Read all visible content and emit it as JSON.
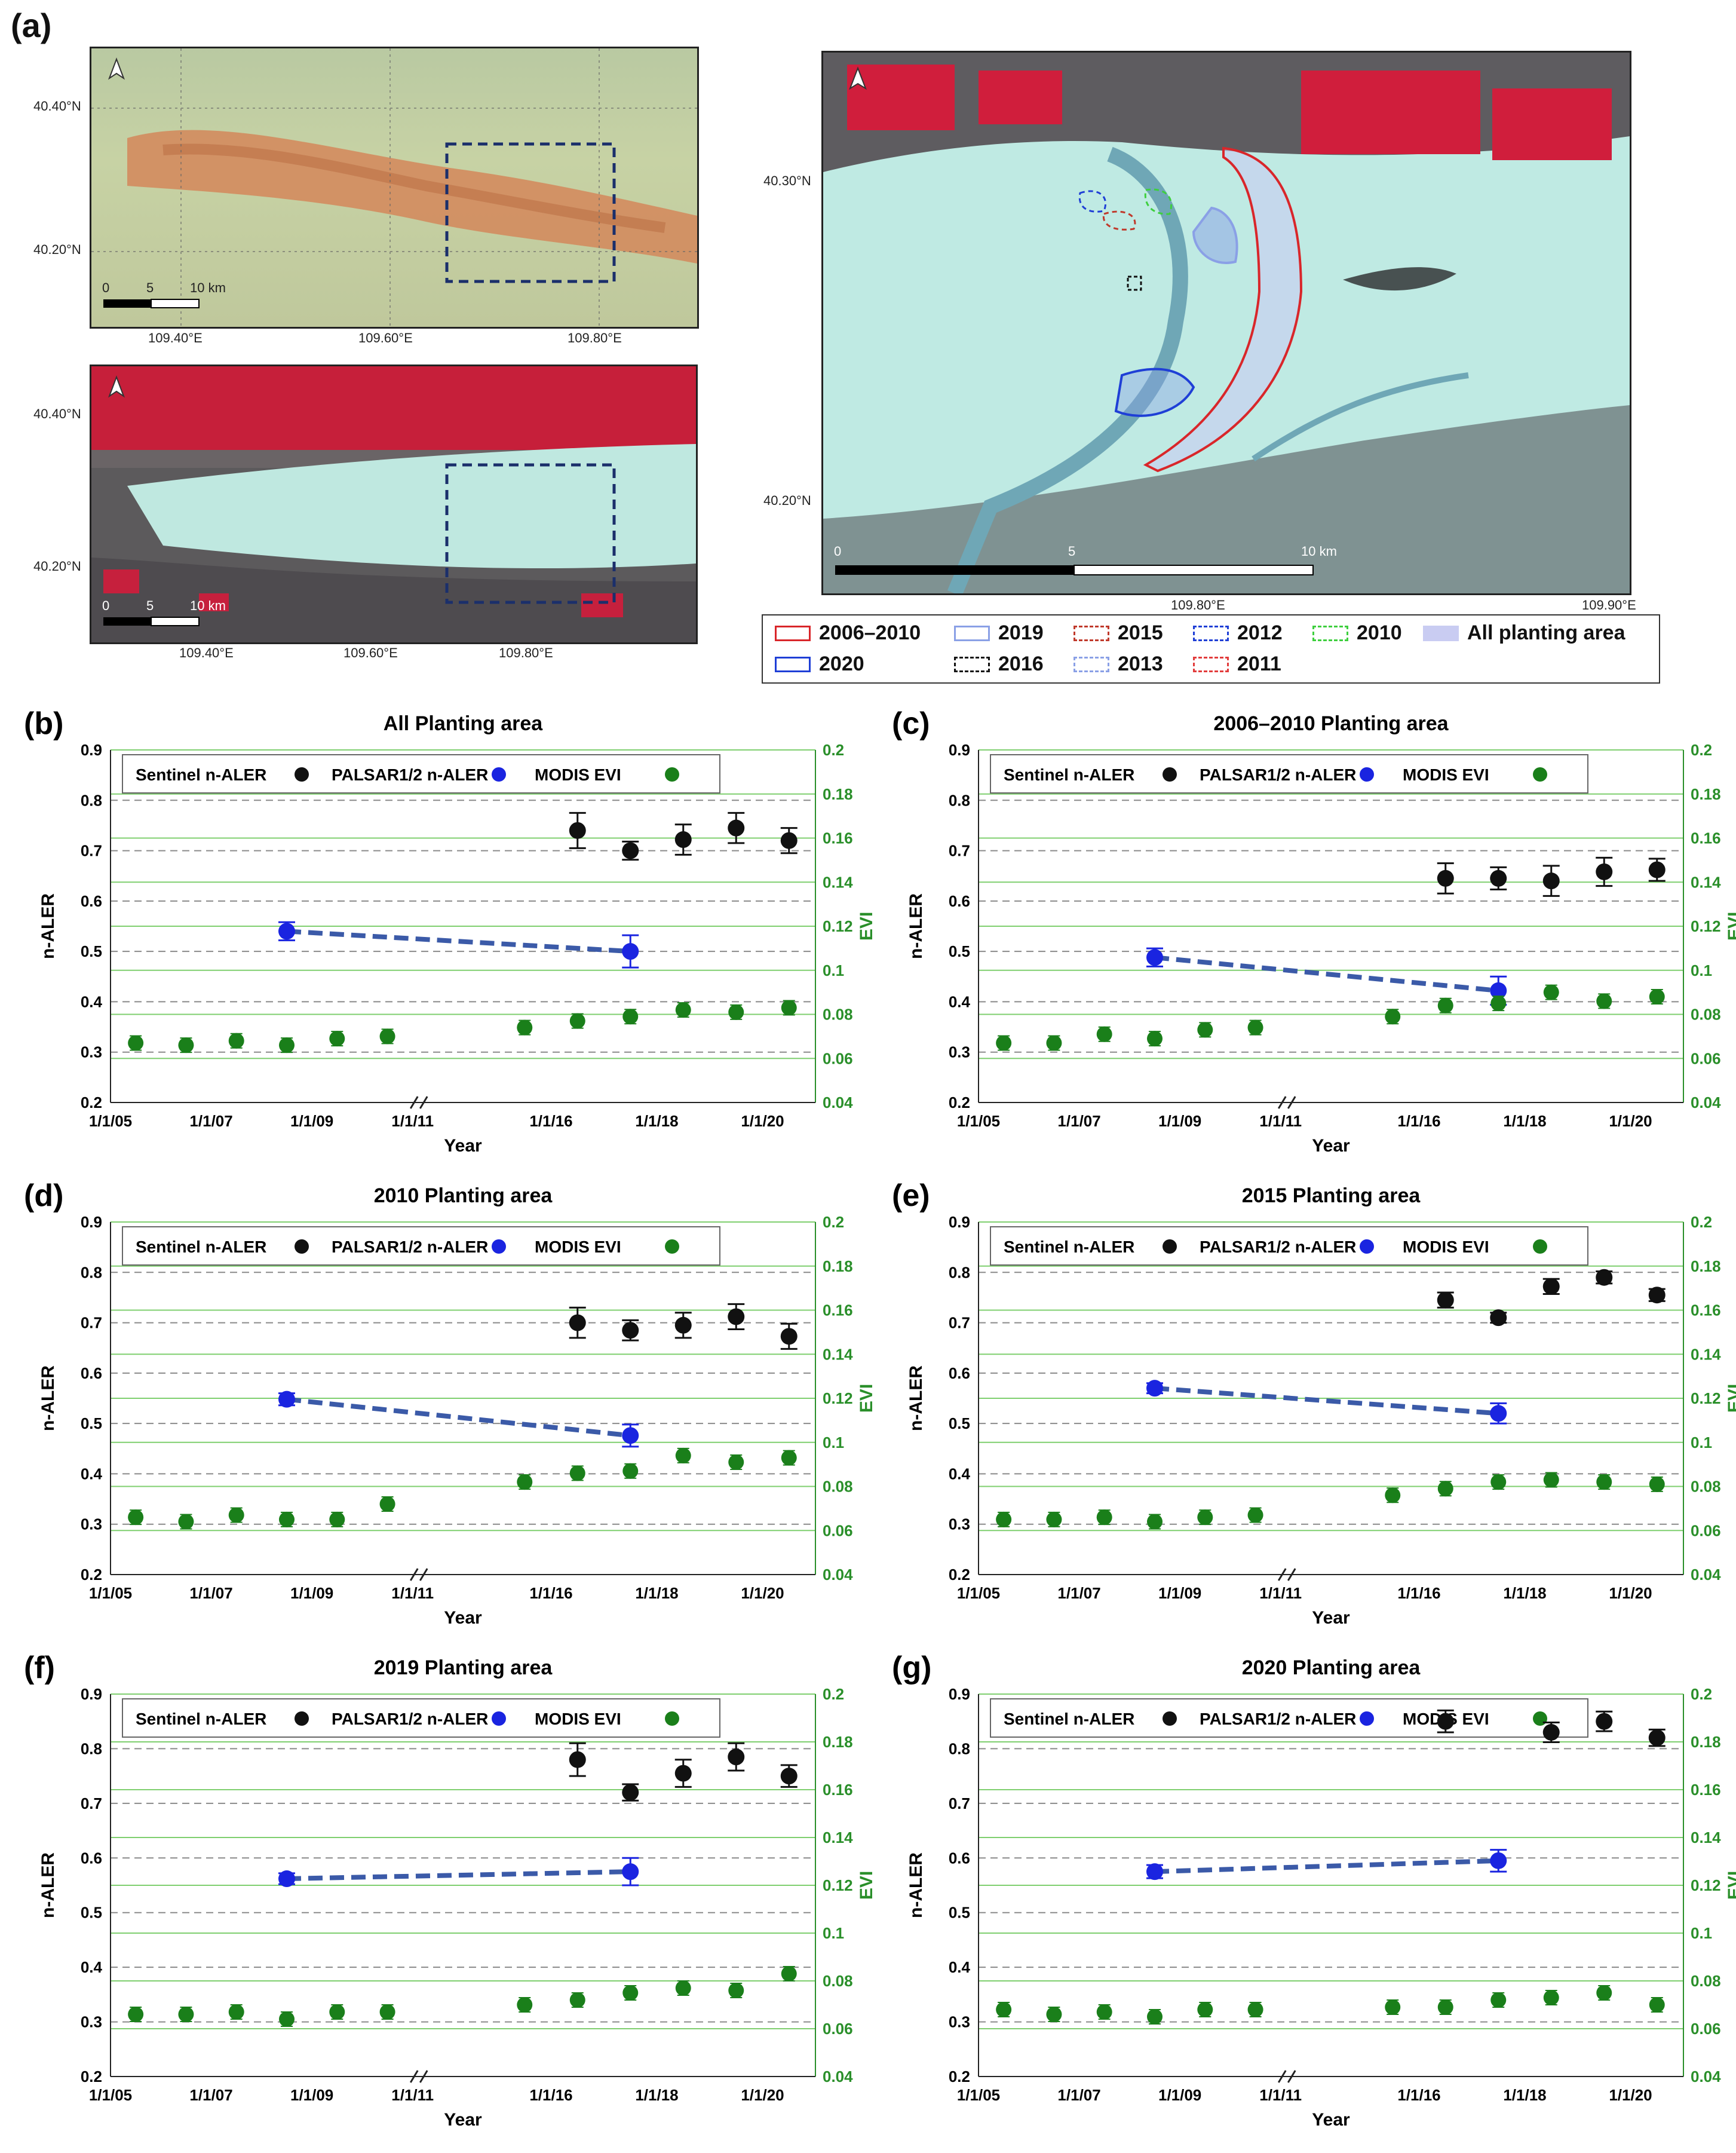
{
  "panel_a": {
    "label": "(a)",
    "map1": {
      "lat_labels": [
        "40.40°N",
        "40.20°N"
      ],
      "lon_labels": [
        "109.40°E",
        "109.60°E",
        "109.80°E"
      ],
      "scale_labels": [
        "0",
        "5",
        "10 km"
      ]
    },
    "map2": {
      "lat_labels": [
        "40.40°N",
        "40.20°N"
      ],
      "lon_labels": [
        "109.40°E",
        "109.60°E",
        "109.80°E"
      ],
      "scale_labels": [
        "0",
        "5",
        "10 km"
      ]
    },
    "map3": {
      "lat_labels": [
        "40.30°N",
        "40.20°N"
      ],
      "lon_labels": [
        "109.80°E",
        "109.90°E"
      ],
      "scale_labels": [
        "0",
        "5",
        "10 km"
      ]
    },
    "legend": [
      {
        "label": "2006–2010",
        "color": "#d9262a",
        "style": "solid"
      },
      {
        "label": "2019",
        "color": "#8aa0e6",
        "style": "solid"
      },
      {
        "label": "2015",
        "color": "#c0392b",
        "style": "dashed"
      },
      {
        "label": "2012",
        "color": "#1f3fd6",
        "style": "dashed"
      },
      {
        "label": "2010",
        "color": "#3ecf3e",
        "style": "dashed"
      },
      {
        "label": "All planting area",
        "color": "#c9ccf2",
        "style": "fill"
      },
      {
        "label": "2020",
        "color": "#1f3fd6",
        "style": "solid"
      },
      {
        "label": "2016",
        "color": "#111111",
        "style": "dashed"
      },
      {
        "label": "2013",
        "color": "#8aa0e6",
        "style": "dashed"
      },
      {
        "label": "2011",
        "color": "#e23b3b",
        "style": "dashed"
      }
    ]
  },
  "chart_legend": [
    {
      "label": "Sentinel n-ALER",
      "color": "#111111"
    },
    {
      "label": "PALSAR1/2 n-ALER",
      "color": "#1a24e0"
    },
    {
      "label": "MODIS EVI",
      "color": "#1a7f1a"
    }
  ],
  "colors": {
    "sentinel": "#111111",
    "palsar": "#1a24e0",
    "trend": "#3b5aa8",
    "modis": "#1a7f1a",
    "evi_axis": "#2a8f2a"
  },
  "chart_data": [
    {
      "panel": "(b)",
      "type": "scatter",
      "title": "All Planting area",
      "xlabel": "Year",
      "ylabel": "n-ALER",
      "y2label": "EVI",
      "ylim": [
        0.2,
        0.9
      ],
      "y2lim": [
        0.04,
        0.2
      ],
      "yticks": [
        "0.2",
        "0.3",
        "0.4",
        "0.5",
        "0.6",
        "0.7",
        "0.8",
        "0.9"
      ],
      "y2ticks": [
        "0.04",
        "0.06",
        "0.08",
        "0.1",
        "0.12",
        "0.14",
        "0.16",
        "0.18",
        "0.2"
      ],
      "xticks": [
        "1/1/05",
        "1/1/07",
        "1/1/09",
        "1/1/11",
        "1/1/16",
        "1/1/18",
        "1/1/20"
      ],
      "sentinel": {
        "x": [
          2016.5,
          2017.5,
          2018.5,
          2019.5,
          2020.5
        ],
        "y": [
          0.74,
          0.7,
          0.722,
          0.745,
          0.72
        ],
        "err": [
          0.035,
          0.018,
          0.03,
          0.03,
          0.025
        ]
      },
      "palsar": {
        "x": [
          2008.5,
          2017.5
        ],
        "y": [
          0.54,
          0.5
        ],
        "err": [
          0.018,
          0.032
        ]
      },
      "modis": {
        "x": [
          2005.5,
          2006.5,
          2007.5,
          2008.5,
          2009.5,
          2010.5,
          2015.5,
          2016.5,
          2017.5,
          2018.5,
          2019.5,
          2020.5
        ],
        "y": [
          0.067,
          0.066,
          0.068,
          0.066,
          0.069,
          0.07,
          0.074,
          0.077,
          0.079,
          0.082,
          0.081,
          0.083
        ]
      }
    },
    {
      "panel": "(c)",
      "type": "scatter",
      "title": "2006–2010 Planting area",
      "xlabel": "Year",
      "ylabel": "n-ALER",
      "y2label": "EVI",
      "ylim": [
        0.2,
        0.9
      ],
      "y2lim": [
        0.04,
        0.2
      ],
      "yticks": [
        "0.2",
        "0.3",
        "0.4",
        "0.5",
        "0.6",
        "0.7",
        "0.8",
        "0.9"
      ],
      "y2ticks": [
        "0.04",
        "0.06",
        "0.08",
        "0.1",
        "0.12",
        "0.14",
        "0.16",
        "0.18",
        "0.2"
      ],
      "xticks": [
        "1/1/05",
        "1/1/07",
        "1/1/09",
        "1/1/11",
        "1/1/16",
        "1/1/18",
        "1/1/20"
      ],
      "sentinel": {
        "x": [
          2016.5,
          2017.5,
          2018.5,
          2019.5,
          2020.5
        ],
        "y": [
          0.645,
          0.645,
          0.64,
          0.658,
          0.662
        ],
        "err": [
          0.03,
          0.022,
          0.03,
          0.028,
          0.022
        ]
      },
      "palsar": {
        "x": [
          2008.5,
          2017.5
        ],
        "y": [
          0.488,
          0.422
        ],
        "err": [
          0.018,
          0.028
        ]
      },
      "modis": {
        "x": [
          2005.5,
          2006.5,
          2007.5,
          2008.5,
          2009.5,
          2010.5,
          2015.5,
          2016.5,
          2017.5,
          2018.5,
          2019.5,
          2020.5
        ],
        "y": [
          0.067,
          0.067,
          0.071,
          0.069,
          0.073,
          0.074,
          0.079,
          0.084,
          0.085,
          0.09,
          0.086,
          0.088
        ]
      }
    },
    {
      "panel": "(d)",
      "type": "scatter",
      "title": "2010 Planting area",
      "xlabel": "Year",
      "ylabel": "n-ALER",
      "y2label": "EVI",
      "ylim": [
        0.2,
        0.9
      ],
      "y2lim": [
        0.04,
        0.2
      ],
      "yticks": [
        "0.2",
        "0.3",
        "0.4",
        "0.5",
        "0.6",
        "0.7",
        "0.8",
        "0.9"
      ],
      "y2ticks": [
        "0.04",
        "0.06",
        "0.08",
        "0.1",
        "0.12",
        "0.14",
        "0.16",
        "0.18",
        "0.2"
      ],
      "xticks": [
        "1/1/05",
        "1/1/07",
        "1/1/09",
        "1/1/11",
        "1/1/16",
        "1/1/18",
        "1/1/20"
      ],
      "sentinel": {
        "x": [
          2016.5,
          2017.5,
          2018.5,
          2019.5,
          2020.5
        ],
        "y": [
          0.7,
          0.685,
          0.695,
          0.712,
          0.673
        ],
        "err": [
          0.03,
          0.02,
          0.025,
          0.025,
          0.025
        ]
      },
      "palsar": {
        "x": [
          2008.5,
          2017.5
        ],
        "y": [
          0.548,
          0.476
        ],
        "err": [
          0.012,
          0.022
        ]
      },
      "modis": {
        "x": [
          2005.5,
          2006.5,
          2007.5,
          2008.5,
          2009.5,
          2010.5,
          2015.5,
          2016.5,
          2017.5,
          2018.5,
          2019.5,
          2020.5
        ],
        "y": [
          0.066,
          0.064,
          0.067,
          0.065,
          0.065,
          0.072,
          0.082,
          0.086,
          0.087,
          0.094,
          0.091,
          0.093
        ]
      }
    },
    {
      "panel": "(e)",
      "type": "scatter",
      "title": "2015 Planting area",
      "xlabel": "Year",
      "ylabel": "n-ALER",
      "y2label": "EVI",
      "ylim": [
        0.2,
        0.9
      ],
      "y2lim": [
        0.04,
        0.2
      ],
      "yticks": [
        "0.2",
        "0.3",
        "0.4",
        "0.5",
        "0.6",
        "0.7",
        "0.8",
        "0.9"
      ],
      "y2ticks": [
        "0.04",
        "0.06",
        "0.08",
        "0.1",
        "0.12",
        "0.14",
        "0.16",
        "0.18",
        "0.2"
      ],
      "xticks": [
        "1/1/05",
        "1/1/07",
        "1/1/09",
        "1/1/11",
        "1/1/16",
        "1/1/18",
        "1/1/20"
      ],
      "sentinel": {
        "x": [
          2016.5,
          2017.5,
          2018.5,
          2019.5,
          2020.5
        ],
        "y": [
          0.745,
          0.71,
          0.772,
          0.79,
          0.755
        ],
        "err": [
          0.015,
          0.01,
          0.015,
          0.012,
          0.012
        ]
      },
      "palsar": {
        "x": [
          2008.5,
          2017.5
        ],
        "y": [
          0.57,
          0.52
        ],
        "err": [
          0.01,
          0.02
        ]
      },
      "modis": {
        "x": [
          2005.5,
          2006.5,
          2007.5,
          2008.5,
          2009.5,
          2010.5,
          2015.5,
          2016.5,
          2017.5,
          2018.5,
          2019.5,
          2020.5
        ],
        "y": [
          0.065,
          0.065,
          0.066,
          0.064,
          0.066,
          0.067,
          0.076,
          0.079,
          0.082,
          0.083,
          0.082,
          0.081
        ]
      }
    },
    {
      "panel": "(f)",
      "type": "scatter",
      "title": "2019 Planting area",
      "xlabel": "Year",
      "ylabel": "n-ALER",
      "y2label": "EVI",
      "ylim": [
        0.2,
        0.9
      ],
      "y2lim": [
        0.04,
        0.2
      ],
      "yticks": [
        "0.2",
        "0.3",
        "0.4",
        "0.5",
        "0.6",
        "0.7",
        "0.8",
        "0.9"
      ],
      "y2ticks": [
        "0.04",
        "0.06",
        "0.08",
        "0.1",
        "0.12",
        "0.14",
        "0.16",
        "0.18",
        "0.2"
      ],
      "xticks": [
        "1/1/05",
        "1/1/07",
        "1/1/09",
        "1/1/11",
        "1/1/16",
        "1/1/18",
        "1/1/20"
      ],
      "sentinel": {
        "x": [
          2016.5,
          2017.5,
          2018.5,
          2019.5,
          2020.5
        ],
        "y": [
          0.78,
          0.72,
          0.755,
          0.785,
          0.75
        ],
        "err": [
          0.03,
          0.015,
          0.025,
          0.025,
          0.02
        ]
      },
      "palsar": {
        "x": [
          2008.5,
          2017.5
        ],
        "y": [
          0.562,
          0.575
        ],
        "err": [
          0.01,
          0.025
        ]
      },
      "modis": {
        "x": [
          2005.5,
          2006.5,
          2007.5,
          2008.5,
          2009.5,
          2010.5,
          2015.5,
          2016.5,
          2017.5,
          2018.5,
          2019.5,
          2020.5
        ],
        "y": [
          0.066,
          0.066,
          0.067,
          0.064,
          0.067,
          0.067,
          0.07,
          0.072,
          0.075,
          0.077,
          0.076,
          0.083
        ]
      }
    },
    {
      "panel": "(g)",
      "type": "scatter",
      "title": "2020 Planting area",
      "xlabel": "Year",
      "ylabel": "n-ALER",
      "y2label": "EVI",
      "ylim": [
        0.2,
        0.9
      ],
      "y2lim": [
        0.04,
        0.2
      ],
      "yticks": [
        "0.2",
        "0.3",
        "0.4",
        "0.5",
        "0.6",
        "0.7",
        "0.8",
        "0.9"
      ],
      "y2ticks": [
        "0.04",
        "0.06",
        "0.08",
        "0.1",
        "0.12",
        "0.14",
        "0.16",
        "0.18",
        "0.2"
      ],
      "xticks": [
        "1/1/05",
        "1/1/07",
        "1/1/09",
        "1/1/11",
        "1/1/16",
        "1/1/18",
        "1/1/20"
      ],
      "sentinel": {
        "x": [
          2016.5,
          2018.5,
          2019.5,
          2020.5
        ],
        "y": [
          0.85,
          0.83,
          0.85,
          0.82
        ],
        "err": [
          0.02,
          0.018,
          0.018,
          0.015
        ]
      },
      "palsar": {
        "x": [
          2008.5,
          2017.5
        ],
        "y": [
          0.575,
          0.595
        ],
        "err": [
          0.012,
          0.02
        ]
      },
      "modis": {
        "x": [
          2005.5,
          2006.5,
          2007.5,
          2008.5,
          2009.5,
          2010.5,
          2015.5,
          2016.5,
          2017.5,
          2018.5,
          2019.5,
          2020.5
        ],
        "y": [
          0.068,
          0.066,
          0.067,
          0.065,
          0.068,
          0.068,
          0.069,
          0.069,
          0.072,
          0.073,
          0.075,
          0.07
        ]
      }
    }
  ]
}
